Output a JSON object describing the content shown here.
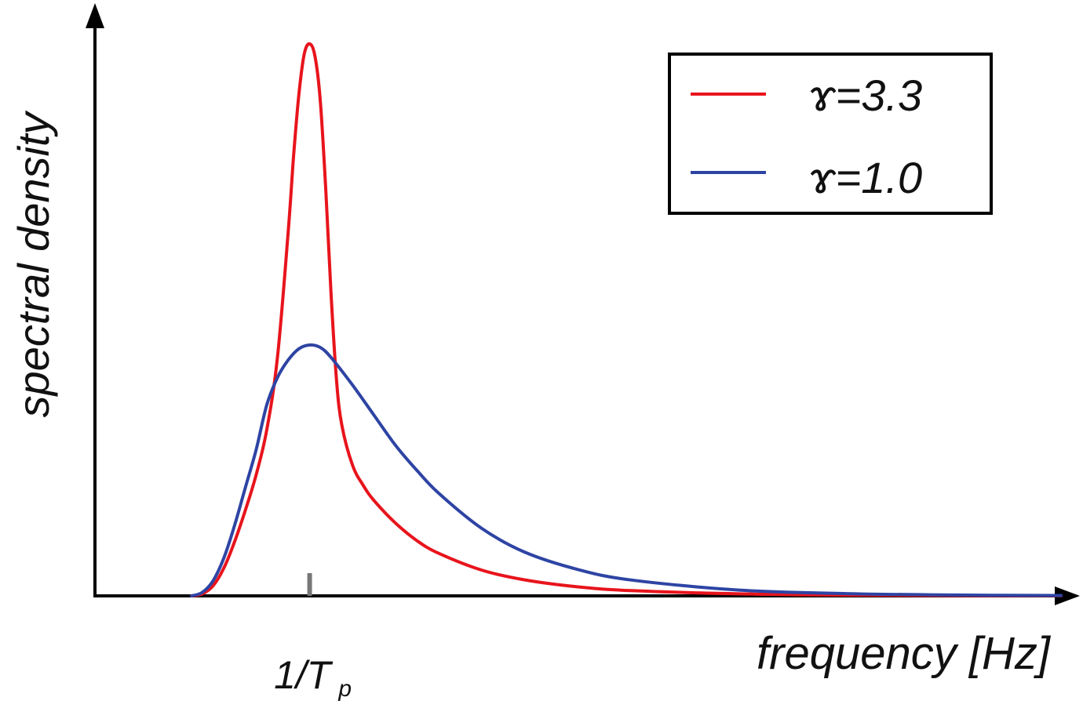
{
  "chart_data": {
    "type": "line",
    "title": "",
    "xlabel": "frequency [Hz]",
    "ylabel": "spectral density",
    "xlim": [
      0,
      4.5
    ],
    "ylim": [
      0,
      2.3
    ],
    "grid": false,
    "legend_position": "top-right",
    "x_ticks": [
      {
        "value": 1.0,
        "label_main": "1/T",
        "label_sub": "p"
      }
    ],
    "series": [
      {
        "name": "ɤ=3.3",
        "color": "#e8141c",
        "x": [
          0.45,
          0.5,
          0.55,
          0.6,
          0.65,
          0.7,
          0.75,
          0.8,
          0.85,
          0.9,
          0.925,
          0.95,
          0.975,
          1.0,
          1.025,
          1.05,
          1.075,
          1.1,
          1.125,
          1.15,
          1.2,
          1.25,
          1.3,
          1.4,
          1.5,
          1.6,
          1.8,
          2.0,
          2.25,
          2.5,
          3.0,
          3.5,
          4.0,
          4.5
        ],
        "y": [
          0.0,
          0.008,
          0.04,
          0.11,
          0.215,
          0.34,
          0.48,
          0.66,
          0.95,
          1.45,
          1.75,
          2.0,
          2.16,
          2.2,
          2.15,
          1.97,
          1.62,
          1.2,
          0.86,
          0.68,
          0.52,
          0.44,
          0.38,
          0.29,
          0.22,
          0.17,
          0.103,
          0.064,
          0.036,
          0.021,
          0.008,
          0.003,
          0.0012,
          0.0005
        ]
      },
      {
        "name": "ɤ=1.0",
        "color": "#2e44a4",
        "x": [
          0.45,
          0.5,
          0.55,
          0.6,
          0.65,
          0.7,
          0.75,
          0.8,
          0.85,
          0.9,
          0.95,
          1.0,
          1.05,
          1.1,
          1.2,
          1.3,
          1.4,
          1.5,
          1.6,
          1.8,
          2.0,
          2.25,
          2.5,
          3.0,
          3.5,
          4.0,
          4.5
        ],
        "y": [
          0.0,
          0.014,
          0.06,
          0.15,
          0.28,
          0.43,
          0.58,
          0.76,
          0.87,
          0.94,
          0.985,
          1.0,
          0.99,
          0.95,
          0.84,
          0.72,
          0.6,
          0.5,
          0.41,
          0.27,
          0.175,
          0.105,
          0.063,
          0.023,
          0.009,
          0.0035,
          0.0015
        ]
      }
    ]
  }
}
